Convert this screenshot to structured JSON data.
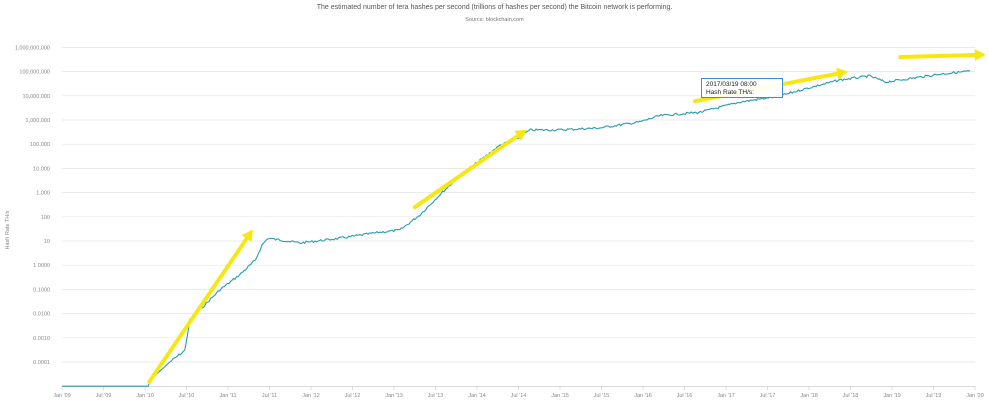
{
  "chart_data": {
    "type": "line",
    "title": "The estimated number of tera hashes per second (trillions of hashes per second) the Bitcoin network is performing.",
    "subtitle": "Source: blockchain.com",
    "xlabel": "",
    "ylabel": "Hash Rate TH/s",
    "yscale": "log",
    "ylim": [
      1e-05,
      1000000000
    ],
    "xlim": [
      2009.0,
      2020.0
    ],
    "grid": true,
    "y_ticks": [
      "1,000,000,000",
      "100,000,000",
      "10,000,000",
      "1,000,000",
      "100,000",
      "10,000",
      "1,000",
      "100",
      "10",
      "1.0000",
      "0.1000",
      "0.0100",
      "0.0010",
      "0.0001"
    ],
    "y_tick_values": [
      1000000000.0,
      100000000.0,
      10000000.0,
      1000000.0,
      100000.0,
      10000.0,
      1000.0,
      100,
      10,
      1,
      0.1,
      0.01,
      0.001,
      0.0001
    ],
    "x_ticks": [
      "Jan '09",
      "Jul '09",
      "Jan '10",
      "Jul '10",
      "Jan '11",
      "Jul '11",
      "Jan '12",
      "Jul '12",
      "Jan '13",
      "Jul '13",
      "Jan '14",
      "Jul '14",
      "Jan '15",
      "Jul '15",
      "Jan '16",
      "Jul '16",
      "Jan '17",
      "Jul '17",
      "Jan '18",
      "Jul '18",
      "Jan '19",
      "Jul '19",
      "Jan '20"
    ],
    "series": [
      {
        "name": "Hash Rate TH/s",
        "color": "#2a9bb0",
        "x": [
          2009.0,
          2010.04,
          2010.06,
          2010.3,
          2010.48,
          2010.54,
          2010.66,
          2010.9,
          2011.14,
          2011.33,
          2011.41,
          2011.48,
          2011.63,
          2011.87,
          2012.35,
          2012.83,
          2013.07,
          2013.31,
          2013.55,
          2013.8,
          2014.04,
          2014.28,
          2014.46,
          2014.64,
          2015.0,
          2015.48,
          2015.96,
          2016.2,
          2016.69,
          2017.17,
          2017.65,
          2017.89,
          2018.37,
          2018.73,
          2018.92,
          2019.1,
          2019.58,
          2019.94
        ],
        "y": [
          1e-05,
          1e-05,
          1.8e-05,
          0.0001,
          0.0003,
          0.0055,
          0.014,
          0.095,
          0.4,
          1.6,
          6.8,
          13,
          11,
          8.3,
          13,
          23,
          28,
          118,
          800,
          5400,
          22000,
          93000,
          150000,
          385000,
          390000,
          470000,
          830000,
          1500000,
          2100000,
          5500000,
          9800000,
          17000000,
          45000000,
          66000000,
          37000000,
          45000000,
          79000000,
          105000000
        ]
      }
    ],
    "tooltip": {
      "date": "2017/03/19 08:00",
      "label": "Hash Rate TH/s:"
    },
    "annotations": [
      {
        "type": "arrow",
        "color": "#f5e812",
        "from": [
          2010.05,
          1.5e-05
        ],
        "to": [
          2011.3,
          30
        ]
      },
      {
        "type": "arrow",
        "color": "#f5e812",
        "from": [
          2013.25,
          250
        ],
        "to": [
          2014.6,
          400000
        ]
      },
      {
        "type": "arrow",
        "color": "#f5e812",
        "from": [
          2016.625,
          6000000
        ],
        "to": [
          2018.47,
          100000000
        ]
      },
      {
        "type": "arrow",
        "color": "#f5e812",
        "from": [
          2019.1,
          400000000
        ],
        "to": [
          2020.13,
          500000000
        ]
      }
    ]
  }
}
